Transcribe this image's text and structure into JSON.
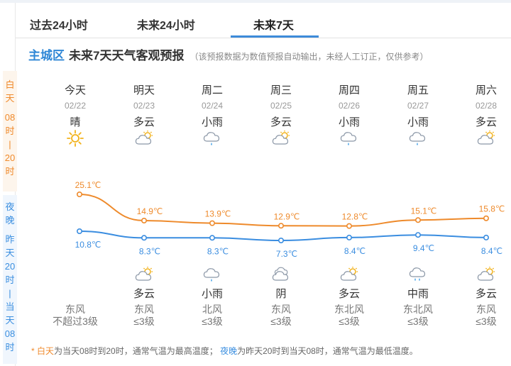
{
  "tabs": [
    {
      "label": "过去24小时"
    },
    {
      "label": "未来24小时"
    },
    {
      "label": "未来7天"
    }
  ],
  "header": {
    "district": "主城区",
    "title": "未来7天天气客观预报",
    "note": "（该预报数据为数值预报自动输出，未经人工订正，仅供参考）"
  },
  "side": {
    "day_chars": [
      "白",
      "天",
      "",
      "08",
      "时",
      "|",
      "20",
      "时"
    ],
    "night_chars": [
      "夜",
      "晚",
      "",
      "昨",
      "天",
      "20",
      "时",
      "|",
      "当",
      "天",
      "08",
      "时"
    ]
  },
  "days": [
    {
      "name": "今天",
      "date": "02/22",
      "day_wx": "晴",
      "day_icon": "sun-icon",
      "day_temp": "25.1℃",
      "day_value": 25.1,
      "night_temp": "10.8℃",
      "night_value": 10.8,
      "night_wx": "",
      "night_icon": "",
      "wind_dir": "东风",
      "wind_level": "不超过3级"
    },
    {
      "name": "明天",
      "date": "02/23",
      "day_wx": "多云",
      "day_icon": "cloudy-icon",
      "day_temp": "14.9℃",
      "day_value": 14.9,
      "night_temp": "8.3℃",
      "night_value": 8.3,
      "night_wx": "多云",
      "night_icon": "cloudy-icon",
      "wind_dir": "东风",
      "wind_level": "≤3级"
    },
    {
      "name": "周二",
      "date": "02/24",
      "day_wx": "小雨",
      "day_icon": "light-rain-icon",
      "day_temp": "13.9℃",
      "day_value": 13.9,
      "night_temp": "8.3℃",
      "night_value": 8.3,
      "night_wx": "小雨",
      "night_icon": "light-rain-icon",
      "wind_dir": "北风",
      "wind_level": "≤3级"
    },
    {
      "name": "周三",
      "date": "02/25",
      "day_wx": "多云",
      "day_icon": "cloudy-icon",
      "day_temp": "12.9℃",
      "day_value": 12.9,
      "night_temp": "7.3℃",
      "night_value": 7.3,
      "night_wx": "阴",
      "night_icon": "overcast-icon",
      "wind_dir": "东风",
      "wind_level": "≤3级"
    },
    {
      "name": "周四",
      "date": "02/26",
      "day_wx": "小雨",
      "day_icon": "light-rain-icon",
      "day_temp": "12.8℃",
      "day_value": 12.8,
      "night_temp": "8.4℃",
      "night_value": 8.4,
      "night_wx": "多云",
      "night_icon": "cloudy-icon",
      "wind_dir": "东北风",
      "wind_level": "≤3级"
    },
    {
      "name": "周五",
      "date": "02/27",
      "day_wx": "小雨",
      "day_icon": "light-rain-icon",
      "day_temp": "15.1℃",
      "day_value": 15.1,
      "night_temp": "9.4℃",
      "night_value": 9.4,
      "night_wx": "中雨",
      "night_icon": "moderate-rain-icon",
      "wind_dir": "东北风",
      "wind_level": "≤3级"
    },
    {
      "name": "周六",
      "date": "02/28",
      "day_wx": "多云",
      "day_icon": "cloudy-icon",
      "day_temp": "15.8℃",
      "day_value": 15.8,
      "night_temp": "8.4℃",
      "night_value": 8.4,
      "night_wx": "多云",
      "night_icon": "cloudy-icon",
      "wind_dir": "东风",
      "wind_level": "≤3级"
    }
  ],
  "footnote": {
    "star": "*",
    "day_term": "白天",
    "day_text": "为当天08时到20时，通常气温为最高温度；",
    "night_term": "夜晚",
    "night_text": "为昨天20时到当天08时，通常气温为最低温度。"
  },
  "colors": {
    "accent": "#2f87d6",
    "day_line": "#ee8a2b",
    "night_line": "#3a8de0"
  }
}
